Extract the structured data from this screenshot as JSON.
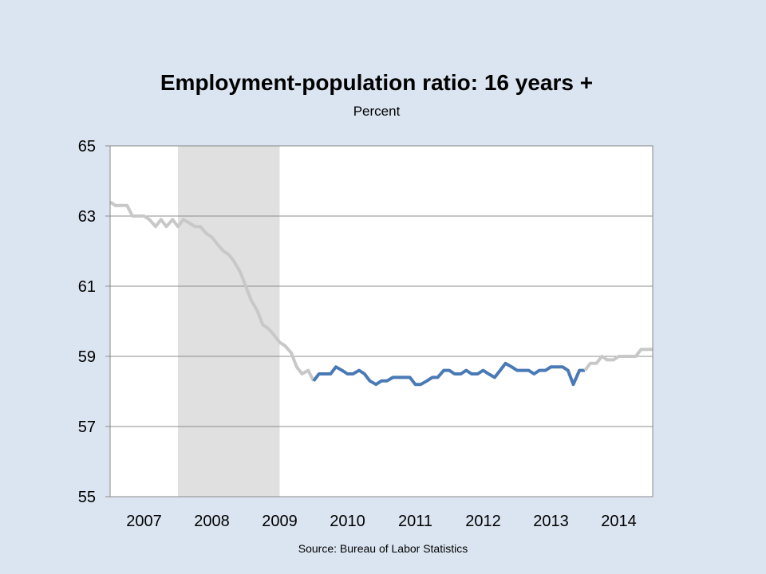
{
  "chart_data": {
    "type": "line",
    "title": "Employment-population ratio: 16 years +",
    "subtitle": "Percent",
    "source": "Source: Bureau of Labor Statistics",
    "ylim": [
      55,
      65
    ],
    "yticks": [
      55,
      57,
      59,
      61,
      63,
      65
    ],
    "xlim": [
      2006.5,
      2014.5
    ],
    "xtick_labels": [
      {
        "label": "2007",
        "x": 2007
      },
      {
        "label": "2008",
        "x": 2008
      },
      {
        "label": "2009",
        "x": 2009
      },
      {
        "label": "2010",
        "x": 2010
      },
      {
        "label": "2011",
        "x": 2011
      },
      {
        "label": "2012",
        "x": 2012
      },
      {
        "label": "2013",
        "x": 2013
      },
      {
        "label": "2014",
        "x": 2014
      }
    ],
    "grid": true,
    "recession_band": {
      "start": 2007.5,
      "end": 2009.0,
      "color": "#e0e0e0"
    },
    "series": [
      {
        "color": "#c8c8c8",
        "points": [
          [
            2006.5,
            63.4
          ],
          [
            2006.58,
            63.3
          ],
          [
            2006.67,
            63.3
          ],
          [
            2006.75,
            63.3
          ],
          [
            2006.83,
            63.0
          ],
          [
            2006.92,
            63.0
          ],
          [
            2007.0,
            63.0
          ],
          [
            2007.08,
            62.9
          ],
          [
            2007.17,
            62.7
          ],
          [
            2007.25,
            62.9
          ],
          [
            2007.33,
            62.7
          ],
          [
            2007.42,
            62.9
          ],
          [
            2007.5,
            62.7
          ],
          [
            2007.58,
            62.9
          ],
          [
            2007.67,
            62.8
          ],
          [
            2007.75,
            62.7
          ],
          [
            2007.83,
            62.7
          ],
          [
            2007.92,
            62.5
          ],
          [
            2008.0,
            62.4
          ],
          [
            2008.08,
            62.2
          ],
          [
            2008.17,
            62.0
          ],
          [
            2008.25,
            61.9
          ],
          [
            2008.33,
            61.7
          ],
          [
            2008.42,
            61.4
          ],
          [
            2008.5,
            61.0
          ],
          [
            2008.58,
            60.6
          ],
          [
            2008.67,
            60.3
          ],
          [
            2008.75,
            59.9
          ],
          [
            2008.83,
            59.8
          ],
          [
            2008.92,
            59.6
          ],
          [
            2009.0,
            59.4
          ],
          [
            2009.08,
            59.3
          ],
          [
            2009.17,
            59.1
          ],
          [
            2009.25,
            58.7
          ],
          [
            2009.33,
            58.5
          ],
          [
            2009.42,
            58.6
          ],
          [
            2009.5,
            58.3
          ]
        ]
      },
      {
        "color": "#4a7ab5",
        "points": [
          [
            2009.5,
            58.3
          ],
          [
            2009.58,
            58.5
          ],
          [
            2009.67,
            58.5
          ],
          [
            2009.75,
            58.5
          ],
          [
            2009.83,
            58.7
          ],
          [
            2009.92,
            58.6
          ],
          [
            2010.0,
            58.5
          ],
          [
            2010.08,
            58.5
          ],
          [
            2010.17,
            58.6
          ],
          [
            2010.25,
            58.5
          ],
          [
            2010.33,
            58.3
          ],
          [
            2010.42,
            58.2
          ],
          [
            2010.5,
            58.3
          ],
          [
            2010.58,
            58.3
          ],
          [
            2010.67,
            58.4
          ],
          [
            2010.75,
            58.4
          ],
          [
            2010.83,
            58.4
          ],
          [
            2010.92,
            58.4
          ],
          [
            2011.0,
            58.2
          ],
          [
            2011.08,
            58.2
          ],
          [
            2011.17,
            58.3
          ],
          [
            2011.25,
            58.4
          ],
          [
            2011.33,
            58.4
          ],
          [
            2011.42,
            58.6
          ],
          [
            2011.5,
            58.6
          ],
          [
            2011.58,
            58.5
          ],
          [
            2011.67,
            58.5
          ],
          [
            2011.75,
            58.6
          ],
          [
            2011.83,
            58.5
          ],
          [
            2011.92,
            58.5
          ],
          [
            2012.0,
            58.6
          ],
          [
            2012.08,
            58.5
          ],
          [
            2012.17,
            58.4
          ],
          [
            2012.25,
            58.6
          ],
          [
            2012.33,
            58.8
          ],
          [
            2012.42,
            58.7
          ],
          [
            2012.5,
            58.6
          ],
          [
            2012.58,
            58.6
          ],
          [
            2012.67,
            58.6
          ],
          [
            2012.75,
            58.5
          ],
          [
            2012.83,
            58.6
          ],
          [
            2012.92,
            58.6
          ],
          [
            2013.0,
            58.7
          ],
          [
            2013.08,
            58.7
          ],
          [
            2013.17,
            58.7
          ],
          [
            2013.25,
            58.6
          ],
          [
            2013.33,
            58.2
          ],
          [
            2013.42,
            58.6
          ],
          [
            2013.5,
            58.6
          ]
        ]
      },
      {
        "color": "#c8c8c8",
        "points": [
          [
            2013.5,
            58.6
          ],
          [
            2013.58,
            58.8
          ],
          [
            2013.67,
            58.8
          ],
          [
            2013.75,
            59.0
          ],
          [
            2013.83,
            58.9
          ],
          [
            2013.92,
            58.9
          ],
          [
            2014.0,
            59.0
          ],
          [
            2014.08,
            59.0
          ],
          [
            2014.17,
            59.0
          ],
          [
            2014.25,
            59.0
          ],
          [
            2014.33,
            59.2
          ],
          [
            2014.42,
            59.2
          ],
          [
            2014.5,
            59.2
          ]
        ]
      }
    ]
  }
}
